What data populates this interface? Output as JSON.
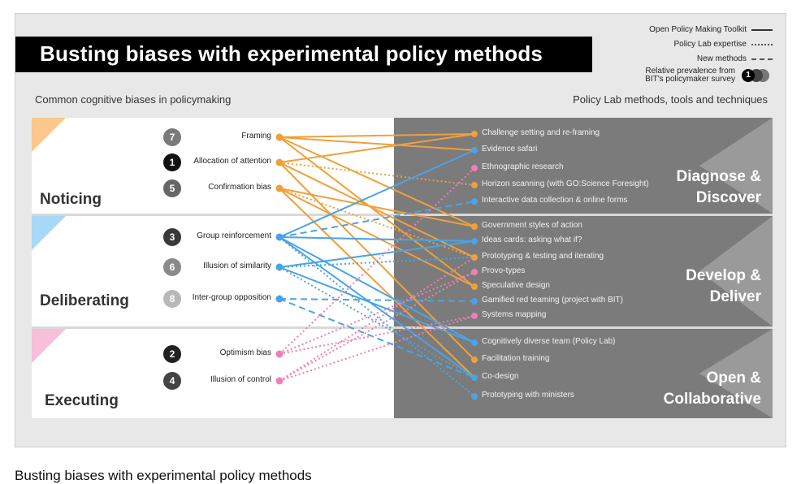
{
  "title": "Busting biases with experimental policy methods",
  "legend": {
    "toolkit": "Open Policy Making Toolkit",
    "expertise": "Policy Lab expertise",
    "new_methods": "New methods",
    "prevalence_line1": "Relative prevalence from",
    "prevalence_line2": "BIT's policymaker survey",
    "prevalence_example": "1"
  },
  "headers": {
    "left": "Common cognitive biases in policymaking",
    "right": "Policy Lab methods, tools and techniques"
  },
  "colors": {
    "orange": "#f0a03a",
    "blue": "#4aa3e6",
    "pink": "#ef7fb6",
    "noticing_tri": "#fbc78a",
    "deliberating_tri": "#a8d8f5",
    "executing_tri": "#f7bfd9"
  },
  "stages": [
    {
      "label": "Noticing",
      "phase": [
        "Diagnose &",
        "Discover"
      ]
    },
    {
      "label": "Deliberating",
      "phase": [
        "Develop &",
        "Deliver"
      ]
    },
    {
      "label": "Executing",
      "phase": [
        "Open &",
        "Collaborative"
      ]
    }
  ],
  "biases": [
    {
      "rank": "7",
      "name": "Framing",
      "stage": 0,
      "color": "orange",
      "num_color": "#7a7a7a"
    },
    {
      "rank": "1",
      "name": "Allocation of attention",
      "stage": 0,
      "color": "orange",
      "num_color": "#111111"
    },
    {
      "rank": "5",
      "name": "Confirmation bias",
      "stage": 0,
      "color": "orange",
      "num_color": "#666666"
    },
    {
      "rank": "3",
      "name": "Group reinforcement",
      "stage": 1,
      "color": "blue",
      "num_color": "#3a3a3a"
    },
    {
      "rank": "6",
      "name": "Illusion of similarity",
      "stage": 1,
      "color": "blue",
      "num_color": "#8a8a8a"
    },
    {
      "rank": "8",
      "name": "Inter-group opposition",
      "stage": 1,
      "color": "blue",
      "num_color": "#b8b8b8"
    },
    {
      "rank": "2",
      "name": "Optimism bias",
      "stage": 2,
      "color": "pink",
      "num_color": "#222222"
    },
    {
      "rank": "4",
      "name": "Illusion of control",
      "stage": 2,
      "color": "pink",
      "num_color": "#444444"
    }
  ],
  "methods": [
    {
      "name": "Challenge setting and re-framing",
      "dot": "orange"
    },
    {
      "name": "Evidence safari",
      "dot": "blue"
    },
    {
      "name": "Ethnographic research",
      "dot": "pink"
    },
    {
      "name": "Horizon scanning (with GO:Science Foresight)",
      "dot": "orange"
    },
    {
      "name": "Interactive data collection & online forms",
      "dot": "blue"
    },
    {
      "name": "Government styles of action",
      "dot": "orange"
    },
    {
      "name": "Ideas cards: asking what if?",
      "dot": "blue"
    },
    {
      "name": "Prototyping & testing and iterating",
      "dot": "orange"
    },
    {
      "name": "Provo-types",
      "dot": "pink"
    },
    {
      "name": "Speculative design",
      "dot": "orange"
    },
    {
      "name": "Gamified red teaming (project with BIT)",
      "dot": "blue"
    },
    {
      "name": "Systems mapping",
      "dot": "pink"
    },
    {
      "name": "Cognitively diverse team (Policy Lab)",
      "dot": "blue"
    },
    {
      "name": "Facilitation training",
      "dot": "orange"
    },
    {
      "name": "Co-design",
      "dot": "blue"
    },
    {
      "name": "Prototyping with ministers",
      "dot": "blue"
    }
  ],
  "links": [
    {
      "bias": 0,
      "method": 0,
      "style": "solid"
    },
    {
      "bias": 0,
      "method": 1,
      "style": "solid"
    },
    {
      "bias": 0,
      "method": 5,
      "style": "solid"
    },
    {
      "bias": 0,
      "method": 9,
      "style": "solid"
    },
    {
      "bias": 1,
      "method": 0,
      "style": "solid"
    },
    {
      "bias": 1,
      "method": 3,
      "style": "dotted"
    },
    {
      "bias": 1,
      "method": 7,
      "style": "solid"
    },
    {
      "bias": 1,
      "method": 13,
      "style": "solid"
    },
    {
      "bias": 2,
      "method": 5,
      "style": "solid"
    },
    {
      "bias": 2,
      "method": 7,
      "style": "dotted"
    },
    {
      "bias": 2,
      "method": 9,
      "style": "solid"
    },
    {
      "bias": 2,
      "method": 14,
      "style": "solid"
    },
    {
      "bias": 3,
      "method": 1,
      "style": "solid"
    },
    {
      "bias": 3,
      "method": 4,
      "style": "dashed"
    },
    {
      "bias": 3,
      "method": 6,
      "style": "solid"
    },
    {
      "bias": 3,
      "method": 12,
      "style": "solid"
    },
    {
      "bias": 3,
      "method": 14,
      "style": "solid"
    },
    {
      "bias": 3,
      "method": 15,
      "style": "dotted"
    },
    {
      "bias": 4,
      "method": 6,
      "style": "solid"
    },
    {
      "bias": 4,
      "method": 7,
      "style": "dotted"
    },
    {
      "bias": 4,
      "method": 12,
      "style": "solid"
    },
    {
      "bias": 4,
      "method": 14,
      "style": "dotted"
    },
    {
      "bias": 5,
      "method": 10,
      "style": "dashed"
    },
    {
      "bias": 5,
      "method": 14,
      "style": "dashed"
    },
    {
      "bias": 6,
      "method": 2,
      "style": "dotted"
    },
    {
      "bias": 6,
      "method": 8,
      "style": "dotted"
    },
    {
      "bias": 6,
      "method": 11,
      "style": "dotted"
    },
    {
      "bias": 7,
      "method": 7,
      "style": "dotted"
    },
    {
      "bias": 7,
      "method": 8,
      "style": "dotted"
    },
    {
      "bias": 7,
      "method": 11,
      "style": "dotted"
    }
  ],
  "caption": "Busting biases with experimental policy methods"
}
